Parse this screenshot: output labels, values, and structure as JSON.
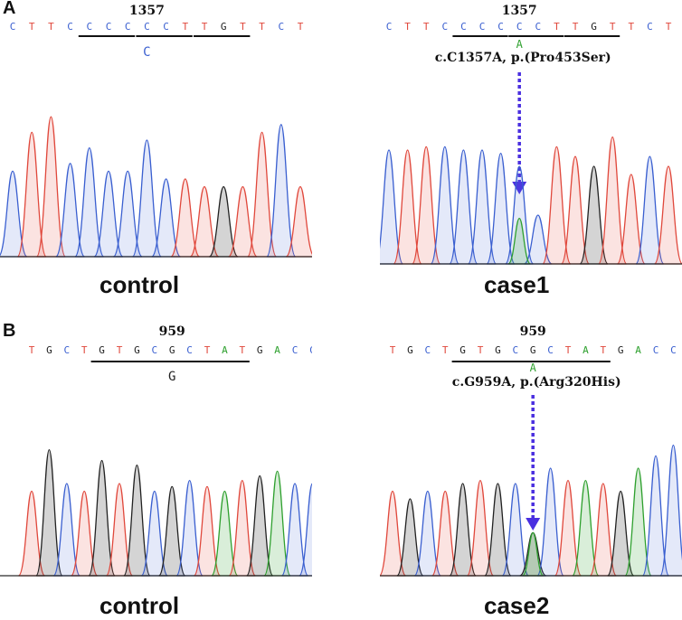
{
  "colors": {
    "A": "#2ea02e",
    "C": "#3a5fd0",
    "G": "#222222",
    "T": "#e0483c",
    "arrow": "#4a2fe0"
  },
  "panel_labels": [
    "A",
    "B"
  ],
  "panels": [
    {
      "id": "A-control",
      "sequence": [
        "C",
        "T",
        "T",
        "C",
        "C",
        "C",
        "C",
        "C",
        "C",
        "T",
        "T",
        "G",
        "T",
        "T",
        "C",
        "T"
      ],
      "position": "1357",
      "alt_base": "C",
      "mutation": "",
      "caption": "control",
      "has_arrow": false
    },
    {
      "id": "A-case1",
      "sequence": [
        "C",
        "T",
        "T",
        "C",
        "C",
        "C",
        "C",
        "C",
        "C",
        "T",
        "T",
        "G",
        "T",
        "T",
        "C",
        "T"
      ],
      "position": "1357",
      "alt_base": "A",
      "mutation": "c.C1357A, p.(Pro453Ser)",
      "caption": "case1",
      "has_arrow": true
    },
    {
      "id": "B-control",
      "sequence": [
        "T",
        "G",
        "C",
        "T",
        "G",
        "T",
        "G",
        "C",
        "G",
        "C",
        "T",
        "A",
        "T",
        "G",
        "A",
        "C",
        "C"
      ],
      "position": "959",
      "alt_base": "G",
      "mutation": "",
      "caption": "control",
      "has_arrow": false
    },
    {
      "id": "B-case2",
      "sequence": [
        "T",
        "G",
        "C",
        "T",
        "G",
        "T",
        "G",
        "C",
        "G",
        "C",
        "T",
        "A",
        "T",
        "G",
        "A",
        "C",
        "C"
      ],
      "position": "959",
      "alt_base": "A",
      "mutation": "c.G959A, p.(Arg320His)",
      "caption": "case2",
      "has_arrow": true
    }
  ]
}
